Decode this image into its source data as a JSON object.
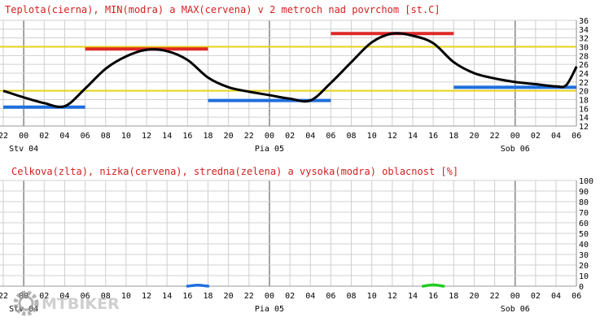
{
  "chart_data": [
    {
      "type": "line",
      "title": "Teplota(cierna), MIN(modra) a MAX(cervena) v 2 metroch nad povrchom [st.C]",
      "x_tick_labels": [
        "22",
        "00",
        "02",
        "04",
        "06",
        "08",
        "10",
        "12",
        "14",
        "16",
        "18",
        "20",
        "22",
        "00",
        "02",
        "04",
        "06",
        "08",
        "10",
        "12",
        "14",
        "16",
        "18",
        "20",
        "22",
        "00",
        "02",
        "04",
        "06"
      ],
      "day_labels": [
        "Stv 04",
        "Pia 05",
        "Sob 06"
      ],
      "y_ticks": [
        12,
        14,
        16,
        18,
        20,
        22,
        24,
        26,
        28,
        30,
        32,
        34,
        36
      ],
      "ylim": [
        12,
        36
      ],
      "x_unit": "hours from 22:00 of the previous day",
      "series": [
        {
          "name": "Teplota",
          "color": "#000000",
          "x": [
            0,
            2,
            4,
            6,
            8,
            10,
            12,
            14,
            16,
            18,
            20,
            22,
            24,
            26,
            28,
            30,
            32,
            34,
            36,
            38,
            40,
            42,
            44,
            46,
            48,
            50,
            52,
            54,
            55,
            56
          ],
          "y": [
            20,
            18.5,
            17.2,
            16.5,
            20.5,
            25,
            27.8,
            29.3,
            29,
            27,
            23,
            20.8,
            19.8,
            19,
            18.2,
            17.8,
            21.8,
            26.5,
            31,
            33,
            32.5,
            30.8,
            26.5,
            24,
            22.8,
            22,
            21.5,
            21,
            21.3,
            25.5
          ]
        }
      ],
      "min_segments": {
        "name": "MIN",
        "color": "#1f6fdd",
        "segments": [
          {
            "x": [
              0,
              8
            ],
            "y": 16.3
          },
          {
            "x": [
              20,
              32
            ],
            "y": 17.8
          },
          {
            "x": [
              44,
              56
            ],
            "y": 20.8
          }
        ]
      },
      "max_segments": {
        "name": "MAX",
        "color": "#e02828",
        "segments": [
          {
            "x": [
              8,
              20
            ],
            "y": 29.5
          },
          {
            "x": [
              32,
              44
            ],
            "y": 33
          }
        ]
      },
      "reference_lines": {
        "color": "#e6d21a",
        "y": [
          20,
          30
        ]
      },
      "grid": true
    },
    {
      "type": "line",
      "title": "Celkova(zlta), nizka(cervena), stredna(zelena) a vysoka(modra) oblacnost [%]",
      "x_tick_labels": [
        "22",
        "00",
        "02",
        "04",
        "06",
        "08",
        "10",
        "12",
        "14",
        "16",
        "18",
        "20",
        "22",
        "00",
        "02",
        "04",
        "06",
        "08",
        "10",
        "12",
        "14",
        "16",
        "18",
        "20",
        "22",
        "00",
        "02",
        "04",
        "06"
      ],
      "day_labels": [
        "Stv 04",
        "Pia 05",
        "Sob 06"
      ],
      "y_ticks": [
        0,
        10,
        20,
        30,
        40,
        50,
        60,
        70,
        80,
        90,
        100
      ],
      "ylim": [
        0,
        100
      ],
      "x_unit": "hours from 22:00 of the previous day",
      "series": [
        {
          "name": "vysoka",
          "color": "#1f6fdd",
          "x": [
            18.0,
            19.0,
            20.0
          ],
          "y": [
            0,
            1,
            0
          ]
        },
        {
          "name": "stredna",
          "color": "#22cc22",
          "x": [
            41.0,
            42.0,
            43.0
          ],
          "y": [
            0,
            1.2,
            0
          ]
        }
      ],
      "grid": true
    }
  ],
  "watermark": {
    "text": "MTBIKER",
    "icon": "gear-icon"
  }
}
